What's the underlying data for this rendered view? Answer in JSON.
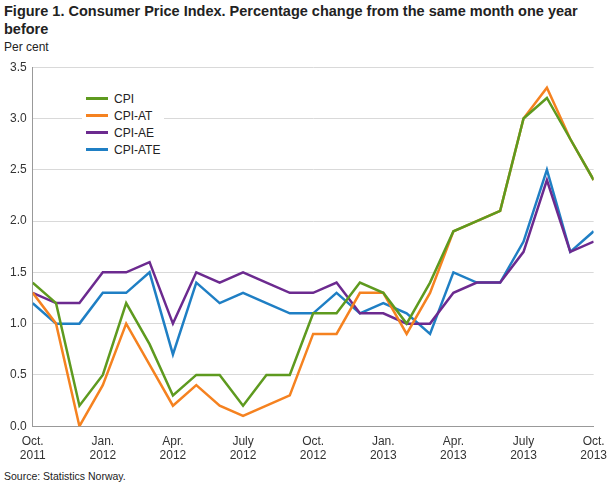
{
  "chart_data": {
    "type": "line",
    "title": "Figure 1. Consumer Price Index. Percentage change from the same month one year before",
    "y_label": "Per cent",
    "source": "Source: Statistics Norway.",
    "categories": [
      "Oct. 2011",
      null,
      null,
      "Jan. 2012",
      null,
      null,
      "Apr. 2012",
      null,
      null,
      "July 2012",
      null,
      null,
      "Oct. 2012",
      null,
      null,
      "Jan. 2013",
      null,
      null,
      "Apr. 2013",
      null,
      null,
      "July 2013",
      null,
      null,
      "Oct. 2013"
    ],
    "series": [
      {
        "name": "CPI",
        "color": "#5e9a1f",
        "values": [
          1.4,
          1.2,
          0.2,
          0.5,
          1.2,
          0.8,
          0.3,
          0.5,
          0.5,
          0.2,
          0.5,
          0.5,
          1.1,
          1.1,
          1.4,
          1.3,
          1.0,
          1.4,
          1.9,
          2.0,
          2.1,
          3.0,
          3.2,
          2.8,
          2.4
        ]
      },
      {
        "name": "CPI-AT",
        "color": "#f58220",
        "values": [
          1.3,
          1.0,
          0.0,
          0.4,
          1.0,
          0.6,
          0.2,
          0.4,
          0.2,
          0.1,
          0.2,
          0.3,
          0.9,
          0.9,
          1.3,
          1.3,
          0.9,
          1.3,
          1.9,
          2.0,
          2.1,
          3.0,
          3.3,
          2.8,
          2.4
        ]
      },
      {
        "name": "CPI-AE",
        "color": "#6c2a8f",
        "values": [
          1.3,
          1.2,
          1.2,
          1.5,
          1.5,
          1.6,
          1.0,
          1.5,
          1.4,
          1.5,
          1.4,
          1.3,
          1.3,
          1.4,
          1.1,
          1.1,
          1.0,
          1.0,
          1.3,
          1.4,
          1.4,
          1.7,
          2.4,
          1.7,
          1.8
        ]
      },
      {
        "name": "CPI-ATE",
        "color": "#1f7fc4",
        "values": [
          1.2,
          1.0,
          1.0,
          1.3,
          1.3,
          1.5,
          0.7,
          1.4,
          1.2,
          1.3,
          1.2,
          1.1,
          1.1,
          1.3,
          1.1,
          1.2,
          1.1,
          0.9,
          1.5,
          1.4,
          1.4,
          1.8,
          2.5,
          1.7,
          1.9
        ]
      }
    ],
    "ylim": [
      0,
      3.5
    ],
    "yticks": [
      {
        "value": 0,
        "label": "0.0"
      },
      0.5,
      {
        "value": 1,
        "label": "1.0"
      },
      1.5,
      {
        "value": 2,
        "label": "2.0"
      },
      2.5,
      {
        "value": 3,
        "label": "3.0"
      },
      3.5
    ],
    "grid": true,
    "legend": "upper left"
  }
}
